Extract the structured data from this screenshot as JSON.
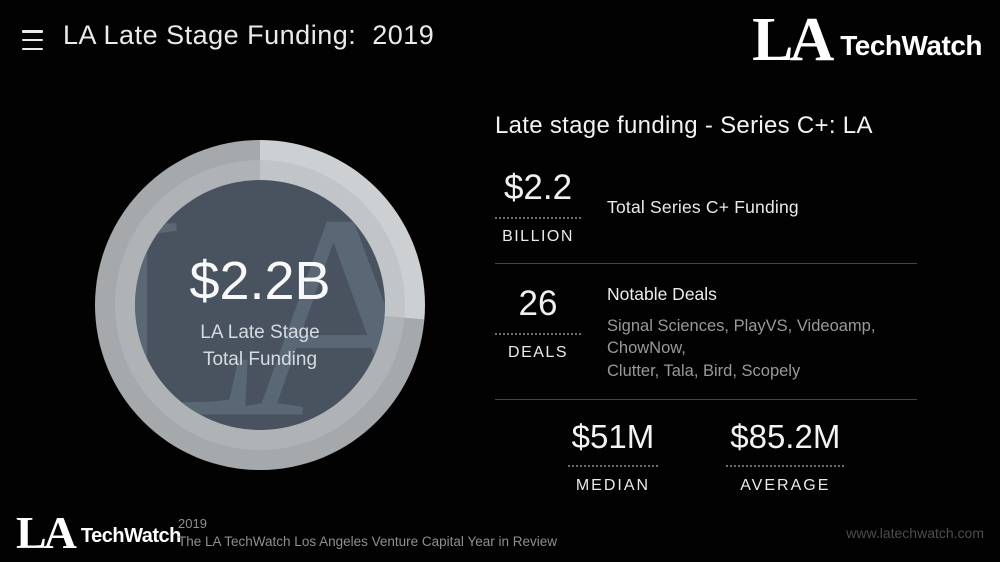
{
  "colors": {
    "bg": "#020202",
    "text": "#efefef",
    "muted": "#97999b",
    "slate": "#48535f",
    "watermark": "#5f6d7b",
    "ring-light": "#cdd0d2",
    "ring-dark": "#a6a9ac",
    "band-light": "#c2c5c7",
    "band-dark": "#b0b3b6",
    "divider": "#474747",
    "dotted": "#6e6e6e",
    "url": "#4b4d4e",
    "sub": "#d5dbe0"
  },
  "header": {
    "title": "LA Late Stage Funding:  2019"
  },
  "brand": {
    "mark": "LA",
    "name": "TechWatch"
  },
  "donut": {
    "watermark": "LA",
    "center_value": "$2.2B",
    "center_label_line1": "LA Late Stage",
    "center_label_line2": "Total Funding"
  },
  "panel": {
    "heading": "Late stage funding - Series C+: LA",
    "total": {
      "value": "$2.2",
      "unit": "BILLION",
      "desc": "Total Series C+ Funding"
    },
    "deals": {
      "value": "26",
      "unit": "DEALS",
      "heading": "Notable Deals",
      "list_line1": "Signal Sciences, PlayVS, Videoamp, ChowNow,",
      "list_line2": "Clutter, Tala, Bird, Scopely"
    },
    "median": {
      "value": "$51M",
      "label": "MEDIAN"
    },
    "average": {
      "value": "$85.2M",
      "label": "AVERAGE"
    }
  },
  "footer": {
    "year": "2019",
    "caption": "The LA TechWatch Los Angeles Venture Capital Year in Review",
    "url": "www.latechwatch.com"
  },
  "chart_data": {
    "type": "pie",
    "title": "Late stage funding - Series C+: LA",
    "donut": {
      "center_value": "$2.2B",
      "center_label": "LA Late Stage Total Funding",
      "segments": [
        {
          "name": "highlight",
          "sweep_deg": 95,
          "color": "#cdd0d2"
        },
        {
          "name": "base",
          "sweep_deg": 265,
          "color": "#a6a9ac"
        }
      ]
    },
    "stats": {
      "total_series_c_plus_funding": "$2.2 BILLION",
      "total_series_c_plus_funding_desc": "Total Series C+ Funding",
      "notable_deals_count": 26,
      "notable_deals": [
        "Signal Sciences",
        "PlayVS",
        "Videoamp",
        "ChowNow",
        "Clutter",
        "Tala",
        "Bird",
        "Scopely"
      ],
      "median": "$51M",
      "average": "$85.2M"
    },
    "legend_position": "none",
    "grid": false
  }
}
